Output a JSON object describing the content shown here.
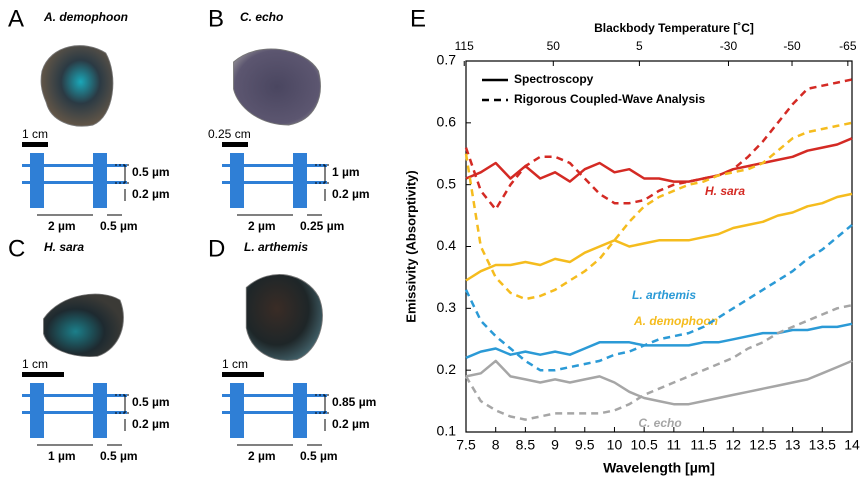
{
  "panels": [
    {
      "letter": "A",
      "species": "A. demophoon",
      "scale": "1 cm",
      "dims": [
        "0.5 µm",
        "0.2 µm",
        "2 µm",
        "0.5 µm"
      ]
    },
    {
      "letter": "B",
      "species": "C. echo",
      "scale": "0.25 cm",
      "dims": [
        "1 µm",
        "0.2 µm",
        "2 µm",
        "0.25 µm"
      ]
    },
    {
      "letter": "C",
      "species": "H. sara",
      "scale": "1 cm",
      "dims": [
        "0.5 µm",
        "0.2 µm",
        "1 µm",
        "0.5 µm"
      ]
    },
    {
      "letter": "D",
      "species": "L. arthemis",
      "scale": "1 cm",
      "dims": [
        "0.85 µm",
        "0.2 µm",
        "2 µm",
        "0.5 µm"
      ]
    }
  ],
  "chart_data": {
    "type": "line",
    "letter": "E",
    "x2_title": "Blackbody Temperature [˚C]",
    "x_title": "Wavelength [µm]",
    "y_title": "Emissivity (Absorptivity)",
    "legend": [
      "Spectroscopy",
      "Rigorous Coupled-Wave Analysis"
    ],
    "xlim": [
      7.5,
      14
    ],
    "ylim": [
      0.1,
      0.7
    ],
    "xticks": [
      7.5,
      8,
      8.5,
      9,
      9.5,
      10,
      10.5,
      11,
      11.5,
      12,
      12.5,
      13,
      13.5,
      14
    ],
    "yticks": [
      0.1,
      0.2,
      0.3,
      0.4,
      0.5,
      0.6,
      0.7
    ],
    "x2ticks": [
      {
        "value": 7.47,
        "label": "115"
      },
      {
        "value": 8.97,
        "label": "50"
      },
      {
        "value": 10.42,
        "label": "5"
      },
      {
        "value": 11.92,
        "label": "-30"
      },
      {
        "value": 12.99,
        "label": "-50"
      },
      {
        "value": 13.93,
        "label": "-65"
      }
    ],
    "x": [
      7.5,
      7.75,
      8,
      8.25,
      8.5,
      8.75,
      9,
      9.25,
      9.5,
      9.75,
      10,
      10.25,
      10.5,
      10.75,
      11,
      11.25,
      11.5,
      11.75,
      12,
      12.25,
      12.5,
      12.75,
      13,
      13.25,
      13.5,
      13.75,
      14
    ],
    "series": [
      {
        "name": "H. sara",
        "color": "#d42a24",
        "spectroscopy": [
          0.51,
          0.52,
          0.535,
          0.51,
          0.53,
          0.51,
          0.52,
          0.505,
          0.525,
          0.535,
          0.52,
          0.525,
          0.51,
          0.51,
          0.505,
          0.505,
          0.51,
          0.515,
          0.525,
          0.53,
          0.535,
          0.54,
          0.545,
          0.555,
          0.56,
          0.565,
          0.575
        ],
        "rcwa": [
          0.56,
          0.49,
          0.46,
          0.5,
          0.53,
          0.545,
          0.545,
          0.535,
          0.51,
          0.485,
          0.47,
          0.47,
          0.475,
          0.49,
          0.5,
          0.505,
          0.51,
          0.515,
          0.525,
          0.545,
          0.57,
          0.6,
          0.63,
          0.655,
          0.66,
          0.665,
          0.67
        ]
      },
      {
        "name": "A. demophoon",
        "color": "#f5bc1e",
        "spectroscopy": [
          0.345,
          0.36,
          0.37,
          0.37,
          0.375,
          0.37,
          0.38,
          0.375,
          0.39,
          0.4,
          0.41,
          0.4,
          0.405,
          0.41,
          0.41,
          0.41,
          0.415,
          0.42,
          0.43,
          0.435,
          0.44,
          0.45,
          0.455,
          0.465,
          0.47,
          0.48,
          0.485
        ],
        "rcwa": [
          0.55,
          0.4,
          0.35,
          0.325,
          0.315,
          0.32,
          0.33,
          0.345,
          0.36,
          0.38,
          0.41,
          0.44,
          0.465,
          0.48,
          0.49,
          0.5,
          0.505,
          0.515,
          0.52,
          0.525,
          0.535,
          0.555,
          0.575,
          0.585,
          0.59,
          0.595,
          0.6
        ]
      },
      {
        "name": "L. arthemis",
        "color": "#2b9ad6",
        "spectroscopy": [
          0.22,
          0.23,
          0.235,
          0.225,
          0.23,
          0.225,
          0.23,
          0.225,
          0.235,
          0.245,
          0.245,
          0.245,
          0.24,
          0.24,
          0.24,
          0.24,
          0.245,
          0.245,
          0.25,
          0.255,
          0.26,
          0.26,
          0.265,
          0.265,
          0.27,
          0.27,
          0.275
        ],
        "rcwa": [
          0.33,
          0.28,
          0.255,
          0.235,
          0.215,
          0.2,
          0.2,
          0.205,
          0.21,
          0.215,
          0.225,
          0.23,
          0.24,
          0.25,
          0.255,
          0.26,
          0.27,
          0.285,
          0.3,
          0.315,
          0.33,
          0.345,
          0.36,
          0.38,
          0.395,
          0.415,
          0.435
        ]
      },
      {
        "name": "C. echo",
        "color": "#a6a6a6",
        "spectroscopy": [
          0.19,
          0.195,
          0.215,
          0.19,
          0.185,
          0.18,
          0.185,
          0.18,
          0.185,
          0.19,
          0.18,
          0.165,
          0.155,
          0.15,
          0.145,
          0.145,
          0.15,
          0.155,
          0.16,
          0.165,
          0.17,
          0.175,
          0.18,
          0.185,
          0.195,
          0.205,
          0.215
        ],
        "rcwa": [
          0.19,
          0.15,
          0.135,
          0.125,
          0.12,
          0.125,
          0.13,
          0.13,
          0.13,
          0.13,
          0.135,
          0.145,
          0.16,
          0.17,
          0.18,
          0.19,
          0.2,
          0.21,
          0.22,
          0.235,
          0.245,
          0.26,
          0.27,
          0.28,
          0.29,
          0.3,
          0.305
        ]
      }
    ]
  }
}
